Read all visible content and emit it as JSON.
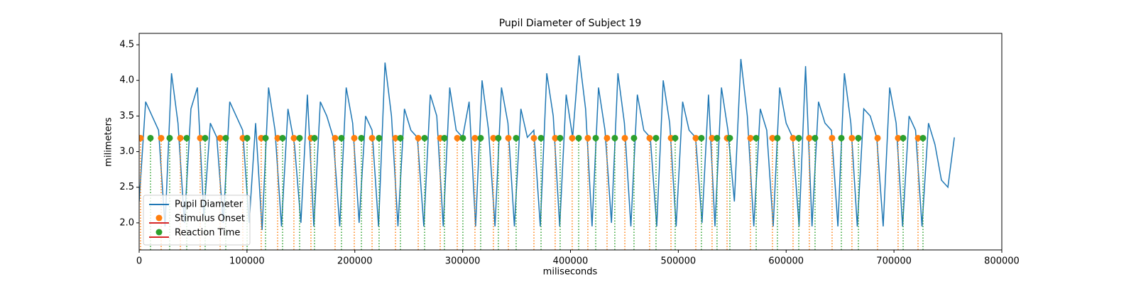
{
  "chart_data": {
    "type": "line-stem",
    "title": "Pupil Diameter of Subject 19",
    "xlabel": "miliseconds",
    "ylabel": "milimeters",
    "xlim": [
      0,
      800000
    ],
    "ylim": [
      1.62,
      4.66
    ],
    "xticks": [
      0,
      100000,
      200000,
      300000,
      400000,
      500000,
      600000,
      700000,
      800000
    ],
    "yticks": [
      {
        "value": 2.0,
        "label": "2.0"
      },
      2.5,
      {
        "value": 3.0,
        "label": "3.0"
      },
      3.5,
      {
        "value": 4.0,
        "label": "4.0"
      },
      4.5
    ],
    "legend": "lower left",
    "baseline_color": "#d62728",
    "series": [
      {
        "name": "Pupil Diameter",
        "kind": "line",
        "color": "#1f77b4",
        "x": [
          0,
          6000,
          12000,
          18000,
          24000,
          30000,
          36000,
          42000,
          48000,
          54000,
          60000,
          66000,
          72000,
          78000,
          84000,
          90000,
          96000,
          102000,
          108000,
          114000,
          120000,
          126000,
          132000,
          138000,
          144000,
          150000,
          156000,
          162000,
          168000,
          174000,
          180000,
          186000,
          192000,
          198000,
          204000,
          210000,
          216000,
          222000,
          228000,
          234000,
          240000,
          246000,
          252000,
          258000,
          264000,
          270000,
          276000,
          282000,
          288000,
          294000,
          300000,
          306000,
          312000,
          318000,
          324000,
          330000,
          336000,
          342000,
          348000,
          354000,
          360000,
          366000,
          372000,
          378000,
          384000,
          390000,
          396000,
          402000,
          408000,
          414000,
          420000,
          426000,
          432000,
          438000,
          444000,
          450000,
          456000,
          462000,
          468000,
          474000,
          480000,
          486000,
          492000,
          498000,
          504000,
          510000,
          516000,
          522000,
          528000,
          534000,
          540000,
          546000,
          552000,
          558000,
          564000,
          570000,
          576000,
          582000,
          588000,
          594000,
          600000,
          606000,
          612000,
          618000,
          624000,
          630000,
          636000,
          642000,
          648000,
          654000,
          660000,
          666000,
          672000,
          678000,
          684000,
          690000,
          696000,
          702000,
          708000,
          714000,
          720000,
          726000,
          732000,
          738000,
          744000,
          750000,
          756000
        ],
        "values": [
          2.3,
          3.7,
          3.5,
          3.3,
          1.95,
          4.1,
          3.4,
          2.0,
          3.6,
          3.9,
          2.1,
          3.4,
          3.2,
          2.0,
          3.7,
          3.5,
          3.3,
          2.0,
          3.4,
          1.9,
          3.9,
          3.3,
          1.95,
          3.6,
          3.1,
          2.0,
          3.8,
          1.95,
          3.7,
          3.5,
          3.2,
          1.95,
          3.9,
          3.4,
          2.0,
          3.5,
          3.3,
          1.95,
          4.25,
          3.5,
          1.95,
          3.6,
          3.3,
          3.2,
          1.95,
          3.8,
          3.5,
          1.95,
          3.9,
          3.3,
          3.2,
          3.7,
          1.95,
          4.0,
          3.3,
          1.95,
          3.9,
          3.4,
          1.95,
          3.6,
          3.2,
          3.3,
          1.95,
          4.1,
          3.5,
          1.95,
          3.8,
          3.2,
          4.35,
          3.6,
          1.95,
          3.9,
          3.3,
          2.0,
          4.1,
          3.4,
          1.95,
          3.8,
          3.3,
          3.2,
          1.95,
          4.0,
          3.4,
          1.95,
          3.7,
          3.3,
          3.2,
          2.0,
          3.8,
          1.95,
          3.9,
          3.3,
          2.3,
          4.3,
          3.5,
          1.95,
          3.6,
          3.3,
          1.95,
          3.9,
          3.4,
          3.2,
          1.95,
          4.2,
          1.95,
          3.7,
          3.4,
          3.3,
          1.95,
          4.1,
          3.4,
          1.95,
          3.6,
          3.5,
          3.2,
          1.95,
          3.9,
          3.4,
          1.95,
          3.5,
          3.3,
          1.95,
          3.4,
          3.1,
          2.6,
          2.5,
          3.2
        ]
      },
      {
        "name": "Stimulus Onset",
        "kind": "stem",
        "color": "#ff7f0e",
        "x": [
          1300,
          20400,
          38200,
          56600,
          75100,
          96100,
          113200,
          128400,
          143500,
          159300,
          181700,
          199500,
          216000,
          237700,
          258800,
          279200,
          295000,
          311400,
          328500,
          342400,
          366100,
          385800,
          401600,
          416100,
          433900,
          450400,
          473400,
          493200,
          516200,
          531300,
          545200,
          566900,
          587300,
          606400,
          621500,
          642600,
          661000,
          684800,
          703800,
          722300
        ],
        "values": [
          3.19,
          3.19,
          3.19,
          3.19,
          3.19,
          3.19,
          3.19,
          3.19,
          3.19,
          3.19,
          3.19,
          3.19,
          3.19,
          3.19,
          3.19,
          3.19,
          3.19,
          3.19,
          3.19,
          3.19,
          3.19,
          3.19,
          3.19,
          3.19,
          3.19,
          3.19,
          3.19,
          3.19,
          3.19,
          3.19,
          3.19,
          3.19,
          3.19,
          3.19,
          3.19,
          3.19,
          3.19,
          3.19,
          3.19,
          3.19
        ]
      },
      {
        "name": "Reaction Time",
        "kind": "stem",
        "color": "#2ca02c",
        "x": [
          10500,
          28300,
          44100,
          61200,
          80300,
          100100,
          117200,
          133000,
          148800,
          162600,
          187600,
          206100,
          222500,
          242300,
          264700,
          283100,
          300200,
          316700,
          333100,
          349600,
          372700,
          390400,
          407600,
          423400,
          441100,
          458900,
          479300,
          497100,
          521400,
          535900,
          547800,
          572200,
          591900,
          611700,
          626800,
          651200,
          667000,
          708500,
          726900
        ],
        "values": [
          3.19,
          3.19,
          3.19,
          3.19,
          3.19,
          3.19,
          3.19,
          3.19,
          3.19,
          3.19,
          3.19,
          3.19,
          3.19,
          3.19,
          3.19,
          3.19,
          3.19,
          3.19,
          3.19,
          3.19,
          3.19,
          3.19,
          3.19,
          3.19,
          3.19,
          3.19,
          3.19,
          3.19,
          3.19,
          3.19,
          3.19,
          3.19,
          3.19,
          3.19,
          3.19,
          3.19,
          3.19,
          3.19,
          3.19
        ]
      }
    ]
  }
}
